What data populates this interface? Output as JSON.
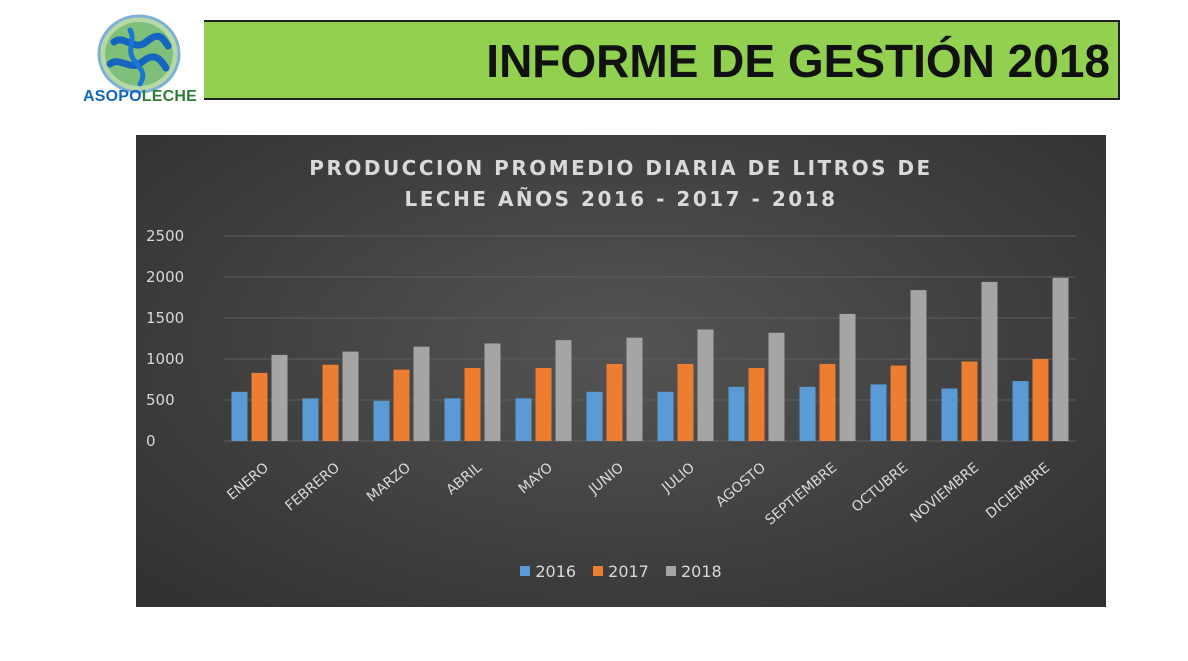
{
  "header": {
    "logo_text_part1": "ASOPO",
    "logo_text_part2": "LECHE",
    "title": "INFORME DE GESTIÓN 2018"
  },
  "colors": {
    "banner": "#92d050",
    "series_2016": "#5b9bd5",
    "series_2017": "#ed7d31",
    "series_2018": "#a5a5a5"
  },
  "chart_data": {
    "type": "bar",
    "title_line1": "PRODUCCION PROMEDIO DIARIA DE LITROS DE",
    "title_line2": "LECHE AÑOS 2016 - 2017 - 2018",
    "categories": [
      "ENERO",
      "FEBRERO",
      "MARZO",
      "ABRIL",
      "MAYO",
      "JUNIO",
      "JULIO",
      "AGOSTO",
      "SEPTIEMBRE",
      "OCTUBRE",
      "NOVIEMBRE",
      "DICIEMBRE"
    ],
    "series": [
      {
        "name": "2016",
        "color": "#5b9bd5",
        "values": [
          600,
          520,
          490,
          520,
          520,
          600,
          600,
          660,
          660,
          690,
          640,
          730
        ]
      },
      {
        "name": "2017",
        "color": "#ed7d31",
        "values": [
          830,
          930,
          870,
          890,
          890,
          940,
          940,
          890,
          940,
          920,
          970,
          1000
        ]
      },
      {
        "name": "2018",
        "color": "#a5a5a5",
        "values": [
          1050,
          1090,
          1150,
          1190,
          1230,
          1260,
          1360,
          1320,
          1550,
          1840,
          1940,
          1990
        ]
      }
    ],
    "y_ticks": [
      "0",
      "500",
      "1000",
      "1500",
      "2000",
      "2500"
    ],
    "ylim": [
      0,
      2500
    ],
    "grid": true,
    "legend_position": "bottom"
  }
}
